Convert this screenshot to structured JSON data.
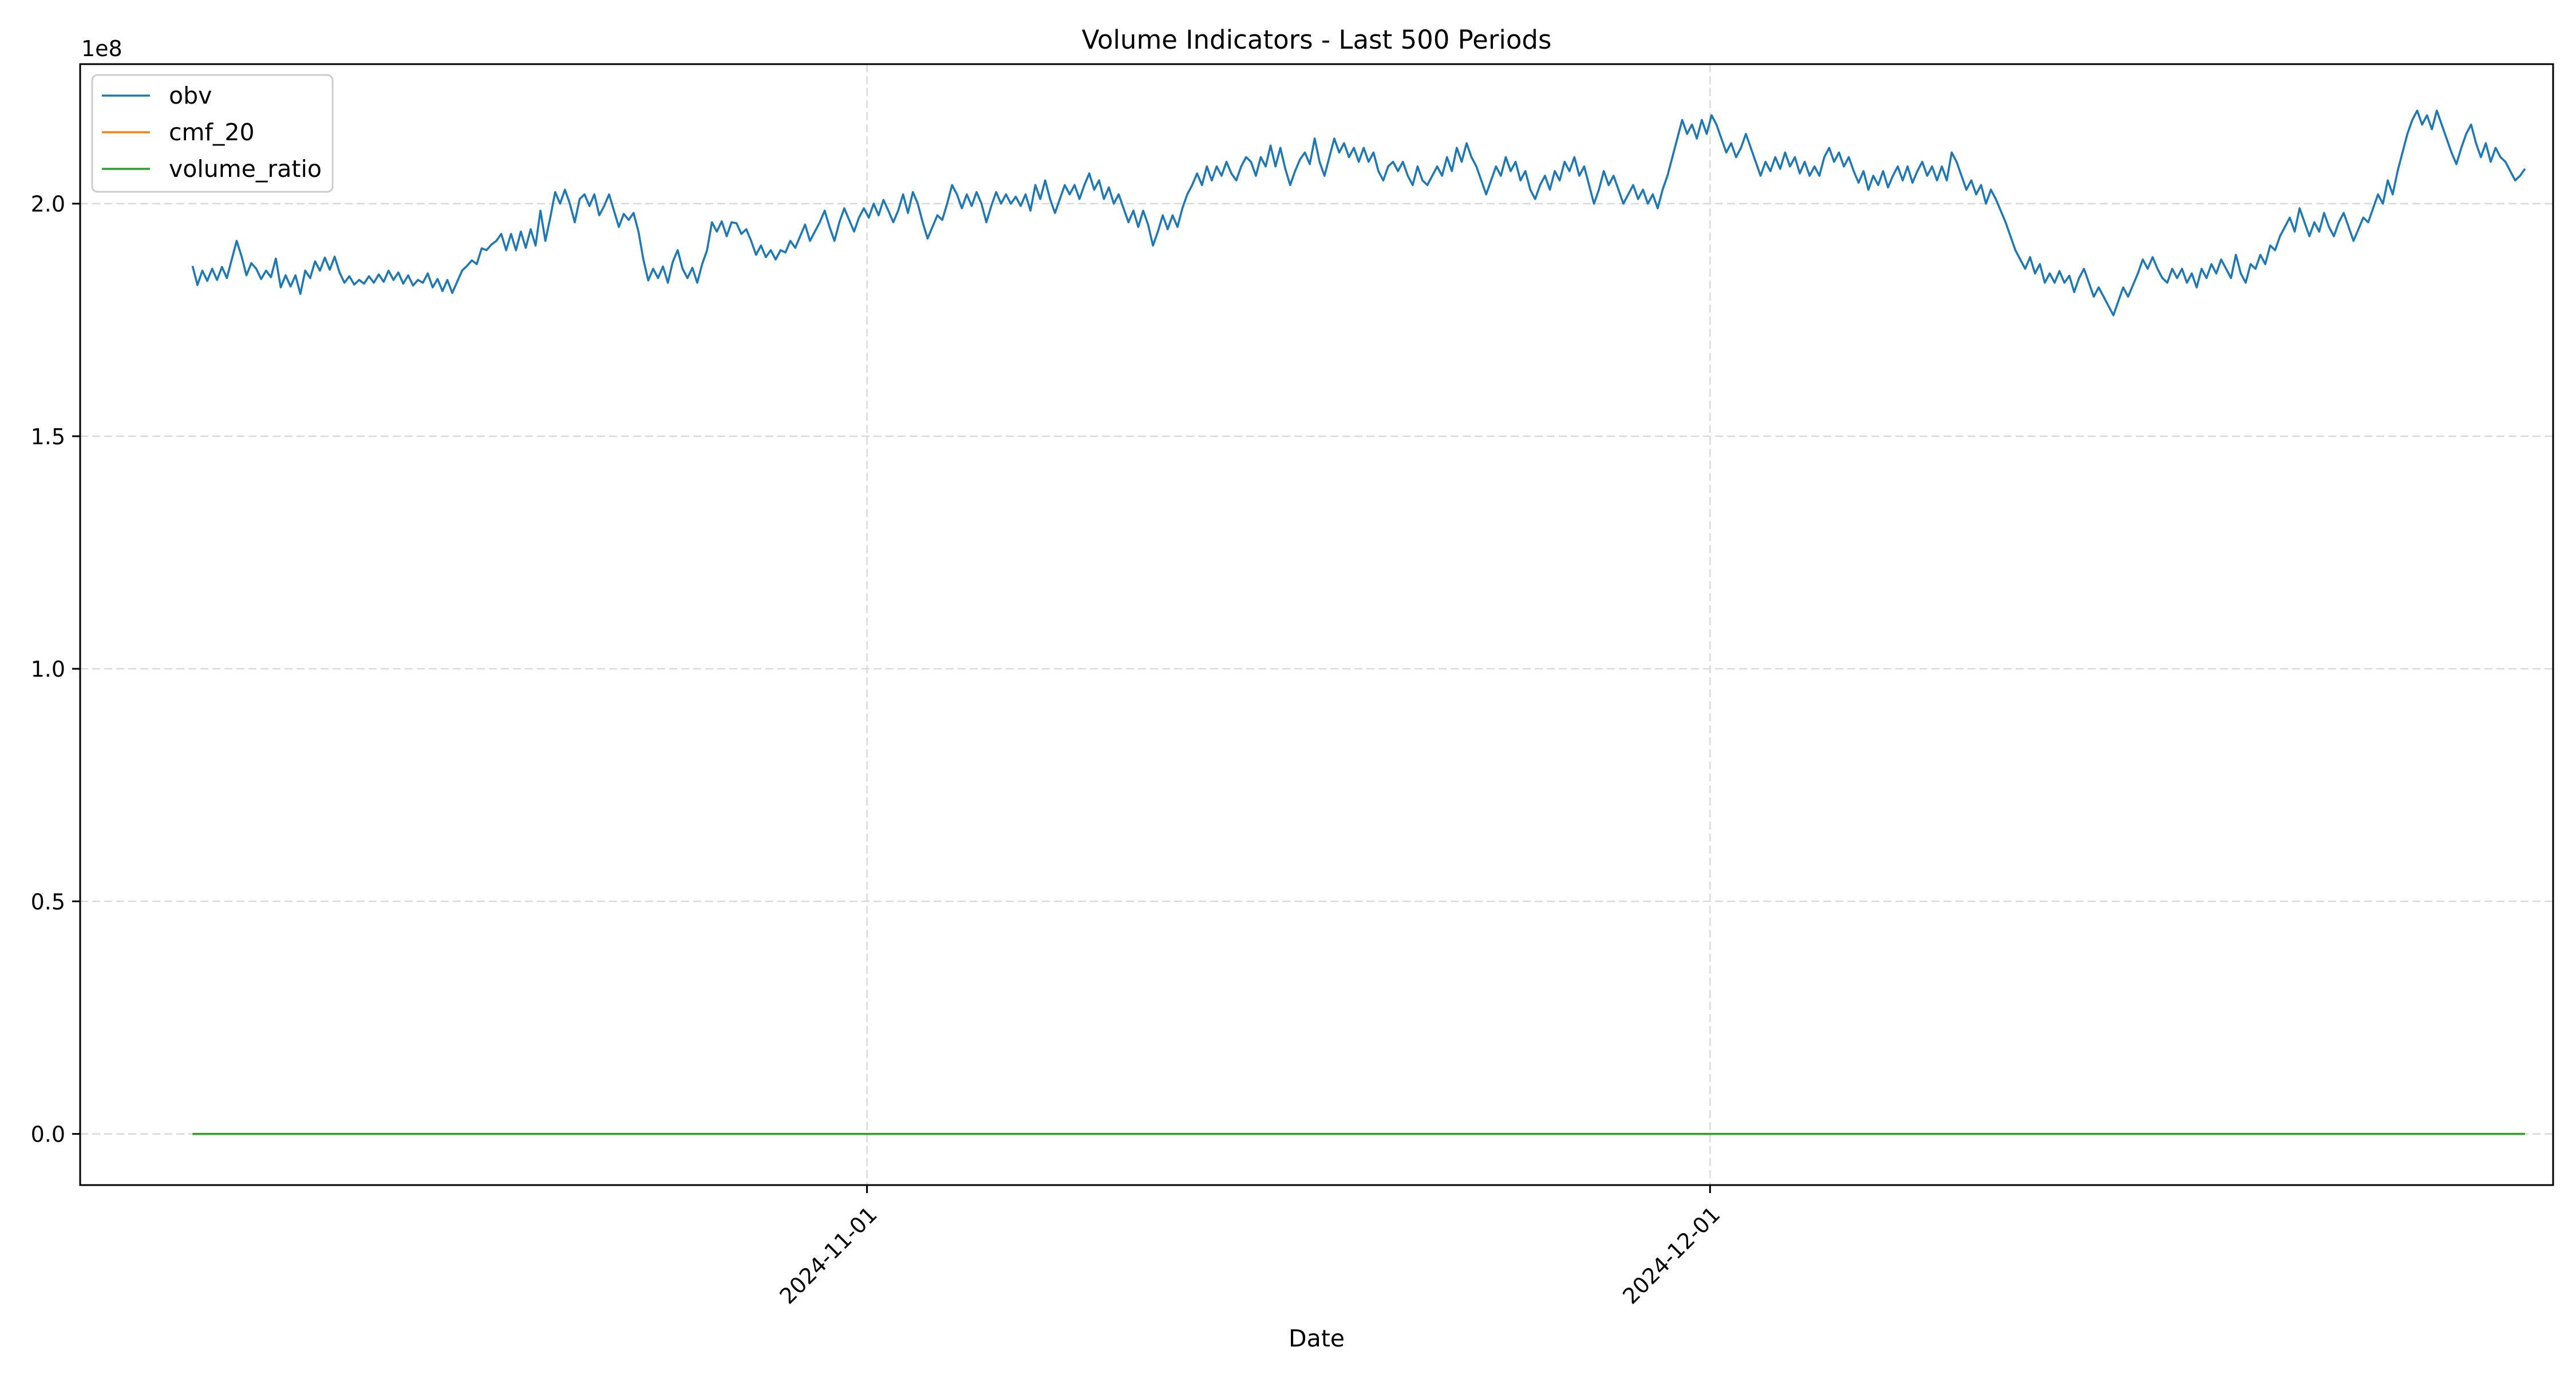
{
  "chart_data": {
    "type": "line",
    "title": "Volume Indicators - Last 500 Periods",
    "xlabel": "Date",
    "ylabel": "",
    "y_offset_label": "1e8",
    "y_scale": 100000000,
    "ylim": [
      -0.11,
      2.3
    ],
    "yticks": [
      0.0,
      0.5,
      1.0,
      1.5,
      2.0
    ],
    "ytick_labels": [
      "0.0",
      "0.5",
      "1.0",
      "1.5",
      "2.0"
    ],
    "xlim": [
      "2024-10-04",
      "2024-12-31"
    ],
    "xticks": [
      "2024-11-01",
      "2024-12-01"
    ],
    "xtick_labels": [
      "2024-11-01",
      "2024-12-01"
    ],
    "grid": true,
    "legend_position": "top-left",
    "series": [
      {
        "name": "obv",
        "color": "#1f77b4",
        "x_start": "2024-10-08",
        "x_end": "2024-12-30",
        "y": [
          1.866,
          1.825,
          1.856,
          1.834,
          1.86,
          1.836,
          1.864,
          1.84,
          1.88,
          1.92,
          1.887,
          1.846,
          1.872,
          1.86,
          1.838,
          1.856,
          1.842,
          1.882,
          1.82,
          1.846,
          1.822,
          1.846,
          1.806,
          1.856,
          1.84,
          1.876,
          1.856,
          1.884,
          1.858,
          1.886,
          1.852,
          1.83,
          1.844,
          1.826,
          1.836,
          1.828,
          1.844,
          1.83,
          1.848,
          1.832,
          1.856,
          1.836,
          1.852,
          1.828,
          1.846,
          1.824,
          1.836,
          1.83,
          1.85,
          1.82,
          1.838,
          1.812,
          1.836,
          1.808,
          1.832,
          1.856,
          1.866,
          1.878,
          1.87,
          1.904,
          1.9,
          1.912,
          1.92,
          1.935,
          1.9,
          1.935,
          1.9,
          1.94,
          1.905,
          1.945,
          1.91,
          1.985,
          1.92,
          1.97,
          2.025,
          2.0,
          2.03,
          2.0,
          1.96,
          2.01,
          2.02,
          1.995,
          2.02,
          1.975,
          1.995,
          2.02,
          1.985,
          1.95,
          1.978,
          1.965,
          1.98,
          1.94,
          1.88,
          1.835,
          1.86,
          1.84,
          1.865,
          1.83,
          1.875,
          1.9,
          1.86,
          1.84,
          1.862,
          1.83,
          1.87,
          1.9,
          1.96,
          1.94,
          1.962,
          1.93,
          1.96,
          1.958,
          1.935,
          1.945,
          1.92,
          1.89,
          1.91,
          1.885,
          1.9,
          1.88,
          1.9,
          1.895,
          1.92,
          1.905,
          1.93,
          1.955,
          1.92,
          1.94,
          1.96,
          1.985,
          1.95,
          1.92,
          1.96,
          1.99,
          1.965,
          1.94,
          1.97,
          1.99,
          1.97,
          2.0,
          1.975,
          2.008,
          1.985,
          1.96,
          1.985,
          2.02,
          1.98,
          2.025,
          2.0,
          1.96,
          1.925,
          1.95,
          1.975,
          1.965,
          2.0,
          2.04,
          2.02,
          1.99,
          2.02,
          1.995,
          2.025,
          2.0,
          1.96,
          1.995,
          2.025,
          2.0,
          2.02,
          2.0,
          2.015,
          1.995,
          2.02,
          1.985,
          2.04,
          2.01,
          2.05,
          2.01,
          1.98,
          2.01,
          2.04,
          2.02,
          2.04,
          2.01,
          2.04,
          2.065,
          2.03,
          2.05,
          2.01,
          2.035,
          2.0,
          2.02,
          1.99,
          1.96,
          1.985,
          1.95,
          1.985,
          1.955,
          1.91,
          1.94,
          1.975,
          1.945,
          1.975,
          1.95,
          1.99,
          2.02,
          2.04,
          2.065,
          2.04,
          2.08,
          2.05,
          2.08,
          2.06,
          2.09,
          2.065,
          2.05,
          2.08,
          2.1,
          2.09,
          2.06,
          2.1,
          2.08,
          2.125,
          2.08,
          2.12,
          2.075,
          2.04,
          2.07,
          2.095,
          2.11,
          2.085,
          2.14,
          2.09,
          2.06,
          2.1,
          2.14,
          2.11,
          2.13,
          2.1,
          2.12,
          2.09,
          2.12,
          2.09,
          2.11,
          2.07,
          2.05,
          2.08,
          2.09,
          2.07,
          2.09,
          2.06,
          2.04,
          2.08,
          2.05,
          2.04,
          2.06,
          2.08,
          2.06,
          2.1,
          2.07,
          2.12,
          2.09,
          2.13,
          2.1,
          2.08,
          2.05,
          2.02,
          2.05,
          2.08,
          2.06,
          2.1,
          2.07,
          2.09,
          2.05,
          2.07,
          2.03,
          2.01,
          2.04,
          2.06,
          2.03,
          2.07,
          2.05,
          2.09,
          2.07,
          2.1,
          2.06,
          2.08,
          2.04,
          2.0,
          2.03,
          2.07,
          2.04,
          2.06,
          2.03,
          2.0,
          2.02,
          2.04,
          2.01,
          2.03,
          2.0,
          2.02,
          1.99,
          2.03,
          2.06,
          2.1,
          2.14,
          2.18,
          2.15,
          2.17,
          2.14,
          2.18,
          2.15,
          2.19,
          2.17,
          2.14,
          2.11,
          2.13,
          2.1,
          2.12,
          2.15,
          2.12,
          2.09,
          2.06,
          2.09,
          2.07,
          2.1,
          2.075,
          2.11,
          2.08,
          2.1,
          2.065,
          2.09,
          2.06,
          2.08,
          2.06,
          2.1,
          2.12,
          2.09,
          2.11,
          2.08,
          2.1,
          2.07,
          2.045,
          2.07,
          2.03,
          2.06,
          2.04,
          2.07,
          2.035,
          2.06,
          2.08,
          2.05,
          2.08,
          2.045,
          2.07,
          2.09,
          2.06,
          2.08,
          2.05,
          2.08,
          2.05,
          2.11,
          2.09,
          2.06,
          2.03,
          2.05,
          2.02,
          2.04,
          2.0,
          2.03,
          2.01,
          1.985,
          1.96,
          1.93,
          1.9,
          1.88,
          1.86,
          1.885,
          1.85,
          1.87,
          1.83,
          1.85,
          1.83,
          1.855,
          1.83,
          1.845,
          1.81,
          1.84,
          1.86,
          1.83,
          1.8,
          1.82,
          1.8,
          1.78,
          1.76,
          1.79,
          1.82,
          1.8,
          1.825,
          1.85,
          1.88,
          1.86,
          1.885,
          1.86,
          1.84,
          1.83,
          1.86,
          1.84,
          1.86,
          1.83,
          1.85,
          1.82,
          1.86,
          1.84,
          1.87,
          1.85,
          1.88,
          1.86,
          1.84,
          1.89,
          1.85,
          1.83,
          1.87,
          1.86,
          1.89,
          1.87,
          1.91,
          1.9,
          1.93,
          1.95,
          1.97,
          1.94,
          1.99,
          1.96,
          1.93,
          1.96,
          1.94,
          1.98,
          1.95,
          1.93,
          1.96,
          1.98,
          1.95,
          1.92,
          1.945,
          1.97,
          1.96,
          1.99,
          2.02,
          2.0,
          2.05,
          2.02,
          2.07,
          2.11,
          2.15,
          2.18,
          2.2,
          2.17,
          2.19,
          2.16,
          2.2,
          2.17,
          2.14,
          2.11,
          2.085,
          2.12,
          2.15,
          2.17,
          2.13,
          2.1,
          2.13,
          2.09,
          2.12,
          2.1,
          2.09,
          2.07,
          2.05,
          2.06,
          2.075
        ]
      },
      {
        "name": "cmf_20",
        "color": "#ff7f0e",
        "x_start": "2024-10-08",
        "x_end": "2024-12-30",
        "y_constant": 0
      },
      {
        "name": "volume_ratio",
        "color": "#2ca02c",
        "x_start": "2024-10-08",
        "x_end": "2024-12-30",
        "y_constant": 0
      }
    ]
  }
}
